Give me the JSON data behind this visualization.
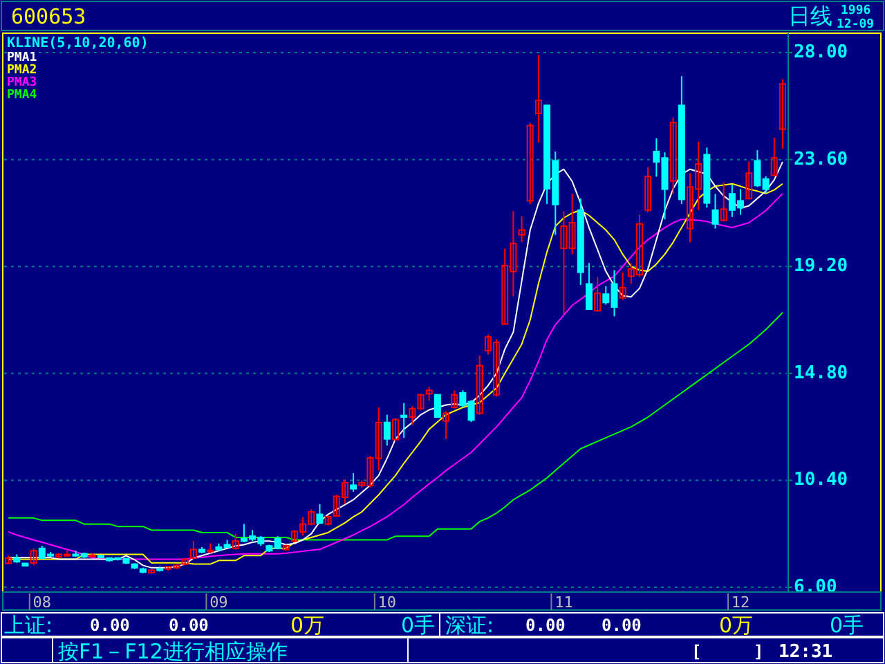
{
  "chart_data": {
    "type": "candlestick",
    "title": "600653",
    "subtitle": "KLINE(5,10,20,60)",
    "annotations": [
      "日线",
      "1996",
      "12-09",
      "上证:",
      "0.00",
      "0.00",
      "0万",
      "0手",
      "深证:",
      "0.00",
      "0.00",
      "0万",
      "0手",
      "按F1－F12进行相应操作",
      "[",
      "]",
      "12:31"
    ],
    "categories": [
      null,
      null,
      null,
      null,
      "08",
      null,
      null,
      null,
      null,
      null,
      null,
      null,
      null,
      null,
      null,
      null,
      null,
      null,
      null,
      null,
      null,
      null,
      null,
      null,
      null,
      "09",
      null,
      null,
      null,
      null,
      null,
      null,
      null,
      null,
      null,
      null,
      null,
      null,
      null,
      null,
      null,
      null,
      null,
      null,
      null,
      "10",
      null,
      null,
      null,
      null,
      null,
      null,
      null,
      null,
      null,
      null,
      null,
      null,
      null,
      null,
      null,
      null,
      null,
      null,
      null,
      null,
      "11",
      null,
      null,
      null,
      null,
      null,
      null,
      null,
      null,
      null,
      null,
      null,
      null,
      null,
      null,
      null,
      null,
      null,
      null,
      null,
      null,
      "12",
      null,
      null,
      null,
      null,
      null
    ],
    "ohlc": [
      [
        6.98,
        7.3,
        6.95,
        7.2
      ],
      [
        7.2,
        7.35,
        7.0,
        7.05
      ],
      [
        6.98,
        7.0,
        6.85,
        6.88
      ],
      [
        7.0,
        7.6,
        6.9,
        7.5
      ],
      [
        7.6,
        7.7,
        7.15,
        7.2
      ],
      [
        7.35,
        7.45,
        7.25,
        7.33
      ],
      [
        7.25,
        7.4,
        7.2,
        7.35
      ],
      [
        7.33,
        7.5,
        7.25,
        7.35
      ],
      [
        7.35,
        7.5,
        7.25,
        7.33
      ],
      [
        7.38,
        7.42,
        7.2,
        7.25
      ],
      [
        7.3,
        7.4,
        7.25,
        7.32
      ],
      [
        7.3,
        7.32,
        7.2,
        7.22
      ],
      [
        7.2,
        7.22,
        7.05,
        7.1
      ],
      [
        7.2,
        7.22,
        7.1,
        7.15
      ],
      [
        7.18,
        7.2,
        6.95,
        7.0
      ],
      [
        6.95,
        6.98,
        6.75,
        6.8
      ],
      [
        6.75,
        6.8,
        6.58,
        6.62
      ],
      [
        6.6,
        6.72,
        6.55,
        6.7
      ],
      [
        6.75,
        6.85,
        6.65,
        6.73
      ],
      [
        6.75,
        6.88,
        6.68,
        6.85
      ],
      [
        6.8,
        6.92,
        6.75,
        6.9
      ],
      [
        6.95,
        7.2,
        6.9,
        7.15
      ],
      [
        7.2,
        7.9,
        7.15,
        7.55
      ],
      [
        7.55,
        7.65,
        7.4,
        7.45
      ],
      [
        7.5,
        7.8,
        7.4,
        7.52
      ],
      [
        7.65,
        7.8,
        7.5,
        7.55
      ],
      [
        7.75,
        7.95,
        7.6,
        7.65
      ],
      [
        7.6,
        8.2,
        7.55,
        7.9
      ],
      [
        8.0,
        8.6,
        7.85,
        7.9
      ],
      [
        8.1,
        8.35,
        7.9,
        7.98
      ],
      [
        8.05,
        8.1,
        7.7,
        7.8
      ],
      [
        7.7,
        7.75,
        7.45,
        7.5
      ],
      [
        8.0,
        8.1,
        7.55,
        7.6
      ],
      [
        7.55,
        7.75,
        7.5,
        7.7
      ],
      [
        7.9,
        8.35,
        7.85,
        8.3
      ],
      [
        8.27,
        8.89,
        8.12,
        8.6
      ],
      [
        8.6,
        9.2,
        8.55,
        9.1
      ],
      [
        9.0,
        9.42,
        8.6,
        8.64
      ],
      [
        8.6,
        8.95,
        8.55,
        8.9
      ],
      [
        8.93,
        9.8,
        8.9,
        9.74
      ],
      [
        9.7,
        10.44,
        9.42,
        10.3
      ],
      [
        10.2,
        10.7,
        9.93,
        10.05
      ],
      [
        10.2,
        10.4,
        10.1,
        10.3
      ],
      [
        10.18,
        11.4,
        10.1,
        11.32
      ],
      [
        11.3,
        13.4,
        10.8,
        12.78
      ],
      [
        12.78,
        13.1,
        11.83,
        12.1
      ],
      [
        12.08,
        12.95,
        12.0,
        12.9
      ],
      [
        13.07,
        13.58,
        12.15,
        13.0
      ],
      [
        13.0,
        13.45,
        12.69,
        13.35
      ],
      [
        13.35,
        13.95,
        13.3,
        13.92
      ],
      [
        13.96,
        14.24,
        13.67,
        14.1
      ],
      [
        13.92,
        13.95,
        12.98,
        13.0
      ],
      [
        12.84,
        13.25,
        12.1,
        13.16
      ],
      [
        13.4,
        14.1,
        13.35,
        13.92
      ],
      [
        14.0,
        14.1,
        13.4,
        13.48
      ],
      [
        13.64,
        13.7,
        12.8,
        12.88
      ],
      [
        13.16,
        15.54,
        13.1,
        15.12
      ],
      [
        15.73,
        16.4,
        15.57,
        16.3
      ],
      [
        13.92,
        16.2,
        13.85,
        16.07
      ],
      [
        16.83,
        19.94,
        16.8,
        19.24
      ],
      [
        18.99,
        21.48,
        17.97,
        20.15
      ],
      [
        20.5,
        21.27,
        20.2,
        20.7
      ],
      [
        21.9,
        25.1,
        21.77,
        25.0
      ],
      [
        25.5,
        27.89,
        24.3,
        26.04
      ],
      [
        25.83,
        25.85,
        21.77,
        22.4
      ],
      [
        23.55,
        23.93,
        20.5,
        21.75
      ],
      [
        19.94,
        21.47,
        17.25,
        20.86
      ],
      [
        19.94,
        22.2,
        19.7,
        21.0
      ],
      [
        21.52,
        22.0,
        18.44,
        18.96
      ],
      [
        18.48,
        19.34,
        17.44,
        17.44
      ],
      [
        17.38,
        18.77,
        17.34,
        18.1
      ],
      [
        18.06,
        18.39,
        17.63,
        17.72
      ],
      [
        18.48,
        19.05,
        17.15,
        17.53
      ],
      [
        17.91,
        18.96,
        17.82,
        18.33
      ],
      [
        18.8,
        19.34,
        18.48,
        19.1
      ],
      [
        18.86,
        21.33,
        18.77,
        20.95
      ],
      [
        21.52,
        23.29,
        21.43,
        22.9
      ],
      [
        23.93,
        24.47,
        22.9,
        23.5
      ],
      [
        23.67,
        23.9,
        21.14,
        22.38
      ],
      [
        22.72,
        25.32,
        22.19,
        25.13
      ],
      [
        25.83,
        27.03,
        21.77,
        21.96
      ],
      [
        20.76,
        23.04,
        20.19,
        22.47
      ],
      [
        22.38,
        24.33,
        21.52,
        23.42
      ],
      [
        23.8,
        24.09,
        21.62,
        21.81
      ],
      [
        21.52,
        22.19,
        20.76,
        20.95
      ],
      [
        21.1,
        22.66,
        21.05,
        21.56
      ],
      [
        22.19,
        22.57,
        21.24,
        21.52
      ],
      [
        21.9,
        22.38,
        21.33,
        21.62
      ],
      [
        21.99,
        23.52,
        21.96,
        23.04
      ],
      [
        23.55,
        23.99,
        22.47,
        22.53
      ],
      [
        22.8,
        22.91,
        22.22,
        22.38
      ],
      [
        22.95,
        24.5,
        22.91,
        23.67
      ],
      [
        24.85,
        26.9,
        24.05,
        26.71
      ]
    ],
    "series": [
      {
        "name": "PMA1",
        "type": "line",
        "color": "#ffffff",
        "values": [
          7.22,
          7.22,
          7.22,
          7.22,
          7.22,
          7.22,
          7.15,
          7.15,
          7.15,
          7.15,
          7.15,
          7.15,
          7.15,
          7.15,
          7.3,
          7.13,
          6.9,
          6.8,
          6.8,
          6.8,
          6.85,
          6.95,
          7.2,
          7.3,
          7.4,
          7.5,
          7.6,
          7.7,
          7.75,
          7.85,
          7.9,
          7.9,
          7.85,
          7.75,
          7.8,
          7.95,
          8.2,
          8.7,
          9.0,
          9.2,
          9.4,
          9.6,
          9.9,
          10.2,
          10.6,
          11.3,
          12.1,
          12.5,
          12.78,
          13.1,
          13.3,
          13.4,
          13.5,
          13.54,
          13.5,
          13.6,
          13.9,
          14.3,
          14.8,
          15.8,
          16.5,
          18.6,
          20.7,
          21.8,
          22.6,
          23.0,
          23.2,
          22.7,
          21.8,
          20.8,
          19.9,
          19.0,
          18.4,
          18.0,
          17.95,
          18.3,
          19.1,
          20.3,
          21.5,
          22.4,
          23.0,
          23.2,
          23.1,
          23.0,
          22.5,
          22.1,
          21.85,
          21.6,
          21.7,
          22.0,
          22.3,
          22.76,
          23.5
        ]
      },
      {
        "name": "PMA2",
        "type": "line",
        "color": "#ffff00",
        "values": [
          7.15,
          7.15,
          7.15,
          7.15,
          7.15,
          7.15,
          7.15,
          7.15,
          7.15,
          7.35,
          7.35,
          7.35,
          7.35,
          7.35,
          7.35,
          7.35,
          7.35,
          7.0,
          7.0,
          7.0,
          7.0,
          7.0,
          6.95,
          6.95,
          6.95,
          7.1,
          7.1,
          7.1,
          7.3,
          7.3,
          7.3,
          7.6,
          7.6,
          7.6,
          7.84,
          7.95,
          8.05,
          8.15,
          8.25,
          8.45,
          8.65,
          8.9,
          9.1,
          9.45,
          9.8,
          10.2,
          10.6,
          11.1,
          11.55,
          12.0,
          12.5,
          12.8,
          13.1,
          13.25,
          13.4,
          13.5,
          13.6,
          13.9,
          14.2,
          14.8,
          15.4,
          16.0,
          17.0,
          18.5,
          19.8,
          20.86,
          21.2,
          21.4,
          21.52,
          21.3,
          21.0,
          20.7,
          20.3,
          19.7,
          19.2,
          19.05,
          19.0,
          19.3,
          19.7,
          20.2,
          20.8,
          21.4,
          22.0,
          22.3,
          22.5,
          22.55,
          22.6,
          22.5,
          22.38,
          22.3,
          22.2,
          22.35,
          22.6
        ]
      },
      {
        "name": "PMA3",
        "type": "line",
        "color": "#ff00ff",
        "values": [
          8.28,
          8.15,
          8.05,
          7.94,
          7.85,
          7.75,
          7.65,
          7.55,
          7.46,
          7.33,
          7.2,
          7.15,
          7.15,
          7.15,
          7.15,
          7.15,
          7.15,
          7.15,
          7.15,
          7.15,
          7.15,
          7.15,
          7.2,
          7.23,
          7.27,
          7.3,
          7.33,
          7.35,
          7.37,
          7.37,
          7.37,
          7.37,
          7.37,
          7.4,
          7.44,
          7.48,
          7.52,
          7.56,
          7.7,
          7.85,
          8.0,
          8.15,
          8.33,
          8.5,
          8.7,
          8.9,
          9.15,
          9.4,
          9.7,
          9.98,
          10.25,
          10.52,
          10.8,
          11.05,
          11.3,
          11.55,
          11.9,
          12.25,
          12.6,
          13.0,
          13.4,
          13.8,
          14.5,
          15.3,
          16.2,
          16.8,
          17.2,
          17.6,
          17.85,
          18.1,
          18.4,
          18.6,
          18.8,
          19.2,
          19.6,
          20.0,
          20.3,
          20.55,
          20.8,
          21.0,
          21.14,
          21.12,
          21.1,
          21.05,
          20.95,
          20.88,
          20.8,
          20.9,
          21.0,
          21.25,
          21.5,
          21.85,
          22.2
        ]
      },
      {
        "name": "PMA4",
        "type": "line",
        "color": "#00ff00",
        "values": [
          8.85,
          8.85,
          8.85,
          8.85,
          8.75,
          8.75,
          8.75,
          8.75,
          8.75,
          8.6,
          8.6,
          8.6,
          8.6,
          8.5,
          8.5,
          8.5,
          8.5,
          8.35,
          8.35,
          8.35,
          8.35,
          8.35,
          8.35,
          8.25,
          8.25,
          8.25,
          8.25,
          8.05,
          8.05,
          8.05,
          8.05,
          8.05,
          8.05,
          8.05,
          7.95,
          7.95,
          7.95,
          7.95,
          7.95,
          7.95,
          7.95,
          7.95,
          7.95,
          7.95,
          7.95,
          7.95,
          8.1,
          8.1,
          8.1,
          8.1,
          8.1,
          8.4,
          8.4,
          8.4,
          8.4,
          8.4,
          8.7,
          8.85,
          9.05,
          9.3,
          9.6,
          9.8,
          10.0,
          10.25,
          10.5,
          10.8,
          11.1,
          11.4,
          11.7,
          11.85,
          12.0,
          12.15,
          12.3,
          12.45,
          12.6,
          12.8,
          13.0,
          13.25,
          13.5,
          13.75,
          14.0,
          14.25,
          14.5,
          14.75,
          15.0,
          15.25,
          15.5,
          15.75,
          16.0,
          16.3,
          16.6,
          16.95,
          17.3
        ]
      }
    ],
    "ylim": [
      5.8,
      28.8
    ],
    "yticks": [
      {
        "value": 28,
        "label": "28.00"
      },
      {
        "value": 23.6,
        "label": "23.60"
      },
      {
        "value": 19.2,
        "label": "19.20"
      },
      {
        "value": 14.8,
        "label": "14.80"
      },
      {
        "value": 10.4,
        "label": "10.40"
      },
      {
        "value": 6,
        "label": "6.00"
      }
    ],
    "grid": "y",
    "legend": "top left"
  }
}
